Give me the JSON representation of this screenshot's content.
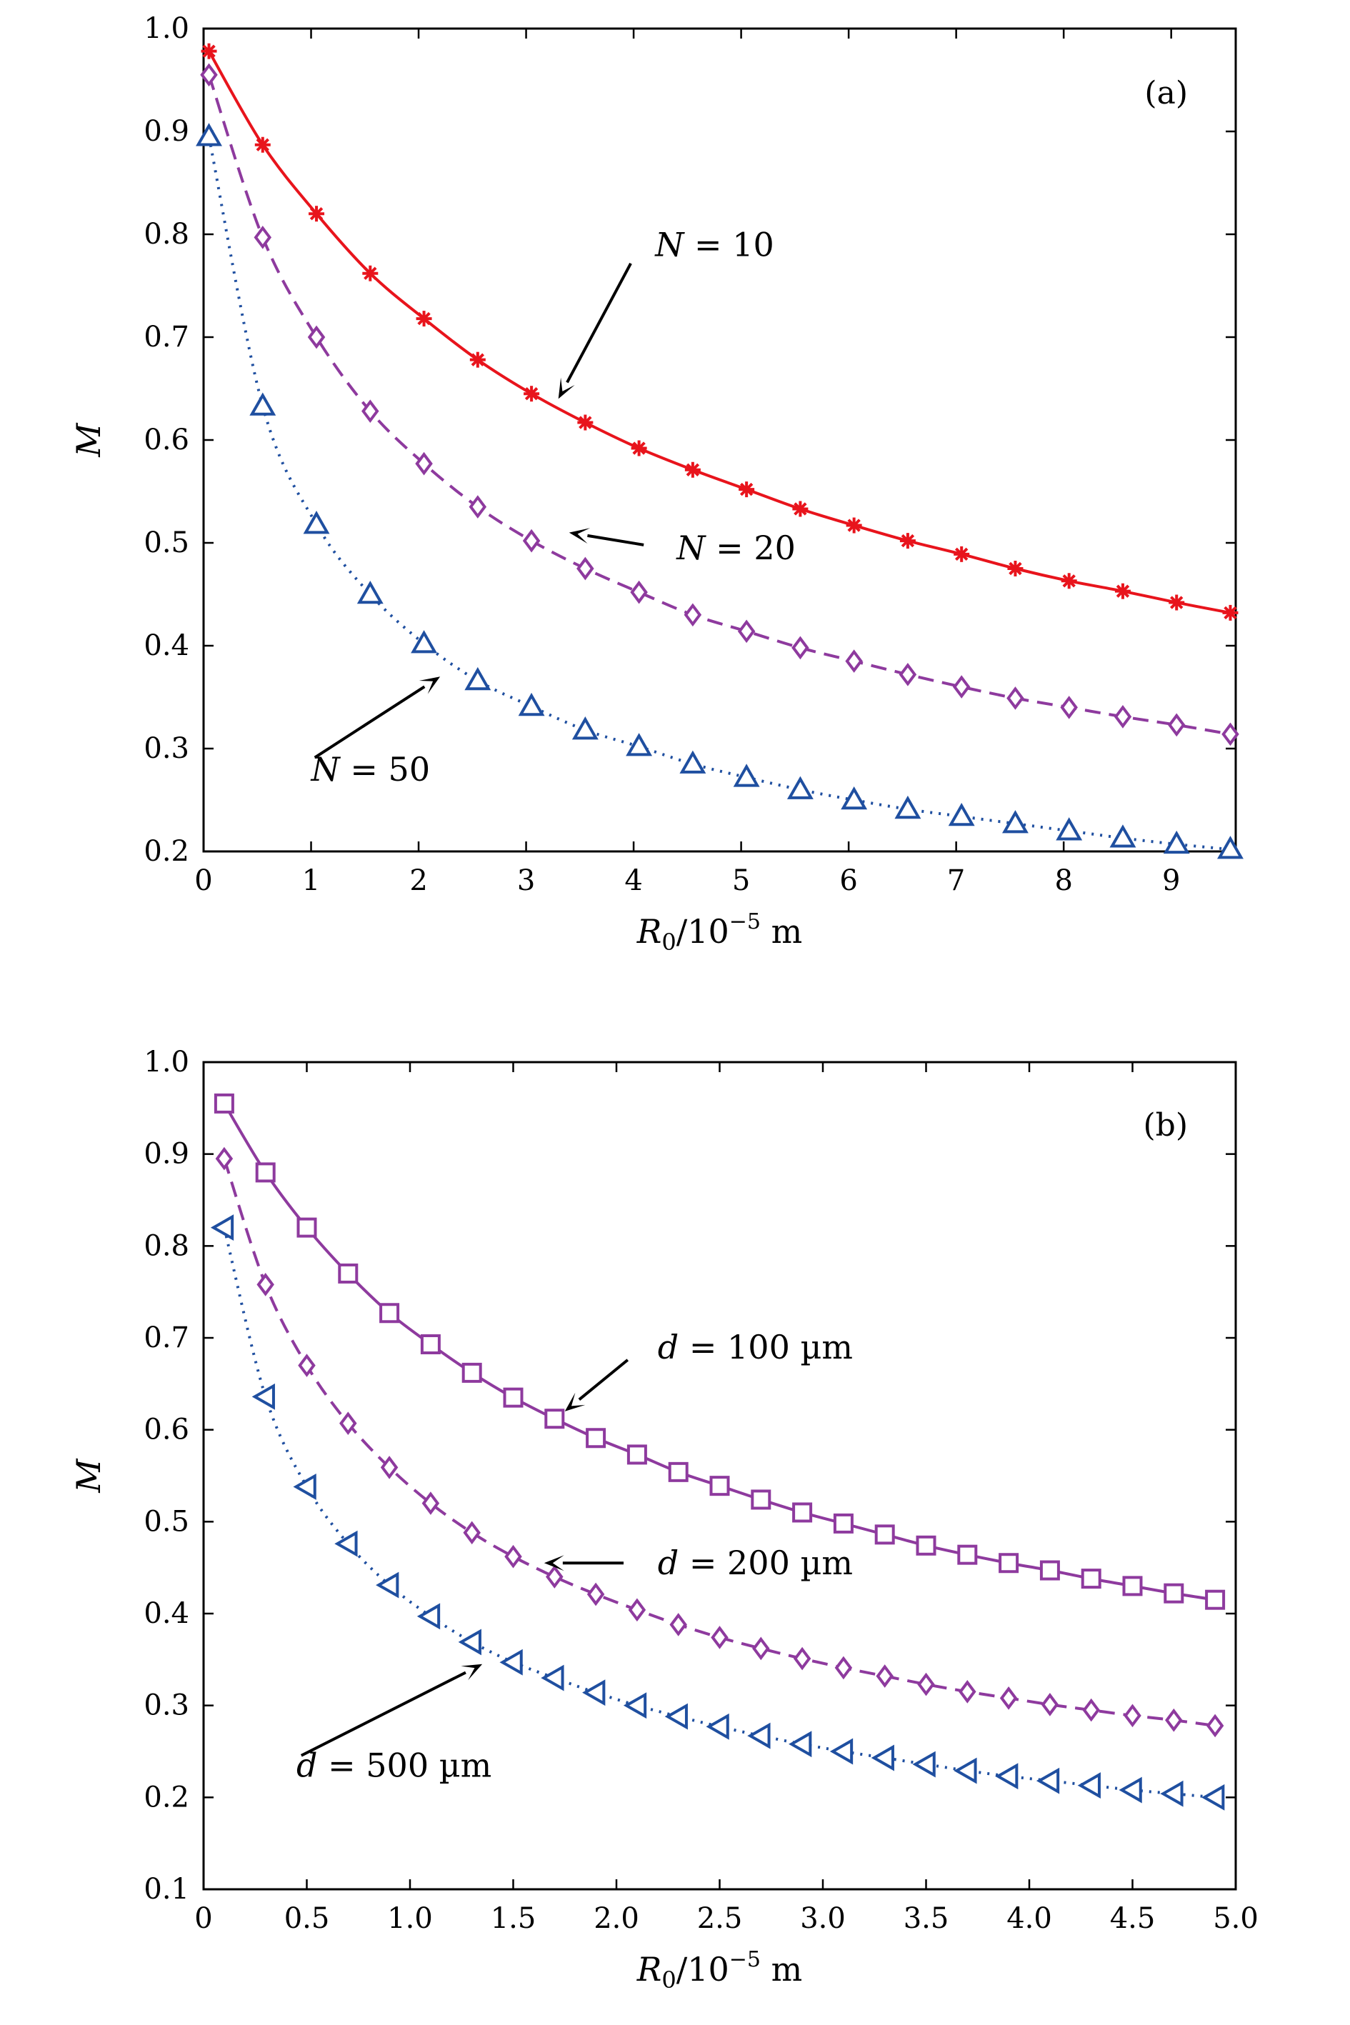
{
  "chart_data": [
    {
      "type": "line",
      "panel_label": "(a)",
      "xlabel_var": "R",
      "xlabel_sub": "0",
      "xlabel_rest": "/10",
      "xlabel_exp": "−5",
      "xlabel_unit": " m",
      "ylabel": "M",
      "xlim": [
        0,
        9.6
      ],
      "ylim": [
        0.2,
        1.0
      ],
      "xticks": [
        0,
        1,
        2,
        3,
        4,
        5,
        6,
        7,
        8,
        9
      ],
      "xtick_labels": [
        "0",
        "1",
        "2",
        "3",
        "4",
        "5",
        "6",
        "7",
        "8",
        "9"
      ],
      "yticks": [
        0.2,
        0.3,
        0.4,
        0.5,
        0.6,
        0.7,
        0.8,
        0.9,
        1.0
      ],
      "ytick_labels": [
        "0.2",
        "0.3",
        "0.4",
        "0.5",
        "0.6",
        "0.7",
        "0.8",
        "0.9",
        "1.0"
      ],
      "grid": false,
      "series": [
        {
          "name": "N = 10",
          "color": "#e8141c",
          "dash": "solid",
          "marker": "asterisk",
          "x": [
            0.05,
            0.55,
            1.05,
            1.55,
            2.05,
            2.55,
            3.05,
            3.55,
            4.05,
            4.55,
            5.05,
            5.55,
            6.05,
            6.55,
            7.05,
            7.55,
            8.05,
            8.55,
            9.05,
            9.55
          ],
          "y": [
            0.978,
            0.887,
            0.82,
            0.762,
            0.718,
            0.678,
            0.645,
            0.617,
            0.592,
            0.571,
            0.552,
            0.533,
            0.517,
            0.502,
            0.489,
            0.475,
            0.463,
            0.453,
            0.442,
            0.432
          ]
        },
        {
          "name": "N = 20",
          "color": "#8e3a9e",
          "dash": "dashed",
          "marker": "diamond",
          "x": [
            0.05,
            0.55,
            1.05,
            1.55,
            2.05,
            2.55,
            3.05,
            3.55,
            4.05,
            4.55,
            5.05,
            5.55,
            6.05,
            6.55,
            7.05,
            7.55,
            8.05,
            8.55,
            9.05,
            9.55
          ],
          "y": [
            0.955,
            0.797,
            0.7,
            0.628,
            0.577,
            0.535,
            0.502,
            0.475,
            0.452,
            0.43,
            0.414,
            0.398,
            0.385,
            0.372,
            0.36,
            0.349,
            0.34,
            0.331,
            0.323,
            0.314
          ]
        },
        {
          "name": "N = 50",
          "color": "#1f4fa0",
          "dash": "dotted",
          "marker": "triangle-up",
          "x": [
            0.05,
            0.55,
            1.05,
            1.55,
            2.05,
            2.55,
            3.05,
            3.55,
            4.05,
            4.55,
            5.05,
            5.55,
            6.05,
            6.55,
            7.05,
            7.55,
            8.05,
            8.55,
            9.05,
            9.55
          ],
          "y": [
            0.895,
            0.633,
            0.518,
            0.45,
            0.402,
            0.366,
            0.341,
            0.318,
            0.302,
            0.285,
            0.272,
            0.26,
            0.25,
            0.241,
            0.234,
            0.227,
            0.22,
            0.213,
            0.207,
            0.202
          ]
        }
      ],
      "annotations": [
        {
          "var": "N",
          "text": " = 10",
          "target": [
            3.3,
            0.64
          ],
          "label_at": [
            4.2,
            0.79
          ]
        },
        {
          "var": "N",
          "text": " = 20",
          "target": [
            3.4,
            0.51
          ],
          "label_at": [
            4.4,
            0.495
          ]
        },
        {
          "var": "N",
          "text": " = 50",
          "target": [
            2.2,
            0.37
          ],
          "label_at": [
            1.0,
            0.28
          ]
        }
      ]
    },
    {
      "type": "line",
      "panel_label": "(b)",
      "xlabel_var": "R",
      "xlabel_sub": "0",
      "xlabel_rest": "/10",
      "xlabel_exp": "−5",
      "xlabel_unit": " m",
      "ylabel": "M",
      "xlim": [
        0,
        5.0
      ],
      "ylim": [
        0.1,
        1.0
      ],
      "xticks": [
        0,
        0.5,
        1.0,
        1.5,
        2.0,
        2.5,
        3.0,
        3.5,
        4.0,
        4.5,
        5.0
      ],
      "xtick_labels": [
        "0",
        "0.5",
        "1.0",
        "1.5",
        "2.0",
        "2.5",
        "3.0",
        "3.5",
        "4.0",
        "4.5",
        "5.0"
      ],
      "yticks": [
        0.1,
        0.2,
        0.3,
        0.4,
        0.5,
        0.6,
        0.7,
        0.8,
        0.9,
        1.0
      ],
      "ytick_labels": [
        "0.1",
        "0.2",
        "0.3",
        "0.4",
        "0.5",
        "0.6",
        "0.7",
        "0.8",
        "0.9",
        "1.0"
      ],
      "grid": false,
      "series": [
        {
          "name": "d = 100 µm",
          "color": "#8e3a9e",
          "dash": "solid",
          "marker": "square",
          "x": [
            0.1,
            0.3,
            0.5,
            0.7,
            0.9,
            1.1,
            1.3,
            1.5,
            1.7,
            1.9,
            2.1,
            2.3,
            2.5,
            2.7,
            2.9,
            3.1,
            3.3,
            3.5,
            3.7,
            3.9,
            4.1,
            4.3,
            4.5,
            4.7,
            4.9
          ],
          "y": [
            0.955,
            0.88,
            0.82,
            0.77,
            0.727,
            0.693,
            0.662,
            0.635,
            0.612,
            0.591,
            0.573,
            0.554,
            0.539,
            0.524,
            0.51,
            0.498,
            0.486,
            0.474,
            0.464,
            0.455,
            0.447,
            0.438,
            0.43,
            0.422,
            0.415
          ]
        },
        {
          "name": "d = 200 µm",
          "color": "#8e3a9e",
          "dash": "dashed",
          "marker": "diamond",
          "x": [
            0.1,
            0.3,
            0.5,
            0.7,
            0.9,
            1.1,
            1.3,
            1.5,
            1.7,
            1.9,
            2.1,
            2.3,
            2.5,
            2.7,
            2.9,
            3.1,
            3.3,
            3.5,
            3.7,
            3.9,
            4.1,
            4.3,
            4.5,
            4.7,
            4.9
          ],
          "y": [
            0.895,
            0.758,
            0.67,
            0.607,
            0.559,
            0.52,
            0.488,
            0.462,
            0.44,
            0.421,
            0.404,
            0.388,
            0.374,
            0.362,
            0.351,
            0.341,
            0.332,
            0.323,
            0.315,
            0.308,
            0.301,
            0.295,
            0.289,
            0.284,
            0.278
          ]
        },
        {
          "name": "d = 500 µm",
          "color": "#1f4fa0",
          "dash": "dotted",
          "marker": "triangle-left",
          "x": [
            0.1,
            0.3,
            0.5,
            0.7,
            0.9,
            1.1,
            1.3,
            1.5,
            1.7,
            1.9,
            2.1,
            2.3,
            2.5,
            2.7,
            2.9,
            3.1,
            3.3,
            3.5,
            3.7,
            3.9,
            4.1,
            4.3,
            4.5,
            4.7,
            4.9
          ],
          "y": [
            0.82,
            0.636,
            0.538,
            0.476,
            0.431,
            0.397,
            0.369,
            0.347,
            0.33,
            0.314,
            0.3,
            0.288,
            0.277,
            0.267,
            0.258,
            0.25,
            0.243,
            0.236,
            0.229,
            0.223,
            0.218,
            0.213,
            0.208,
            0.204,
            0.2
          ]
        }
      ],
      "annotations": [
        {
          "var": "d",
          "text": " = 100 µm",
          "target": [
            1.75,
            0.62
          ],
          "label_at": [
            2.2,
            0.69
          ]
        },
        {
          "var": "d",
          "text": " = 200 µm",
          "target": [
            1.65,
            0.455
          ],
          "label_at": [
            2.2,
            0.455
          ]
        },
        {
          "var": "d",
          "text": " = 500 µm",
          "target": [
            1.35,
            0.345
          ],
          "label_at": [
            0.45,
            0.235
          ]
        }
      ]
    }
  ]
}
